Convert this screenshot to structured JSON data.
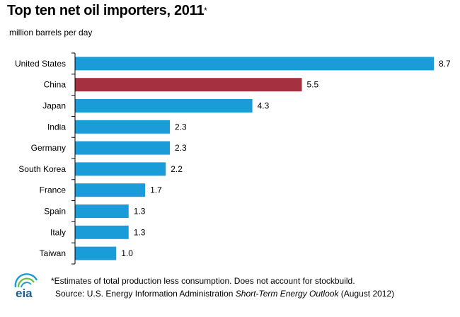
{
  "title": "Top ten net oil importers, 2011",
  "title_marker": "*",
  "subtitle": "million barrels per day",
  "footnote": {
    "note": "*Estimates of total production less consumption. Does not account for stockbuild.",
    "source_prefix": "Source: U.S. Energy Information Administration ",
    "source_title": "Short-Term Energy Outlook",
    "source_suffix": " (August 2012)"
  },
  "logo_text": "eia",
  "colors": {
    "default_bar": "#1a9cd9",
    "highlight_bar": "#a5303f",
    "axis": "#000000"
  },
  "chart_data": {
    "type": "bar",
    "orientation": "horizontal",
    "title": "Top ten net oil importers, 2011",
    "xlabel": "million barrels per day",
    "ylabel": "",
    "categories": [
      "United States",
      "China",
      "Japan",
      "India",
      "Germany",
      "South Korea",
      "France",
      "Spain",
      "Italy",
      "Taiwan"
    ],
    "values": [
      8.7,
      5.5,
      4.3,
      2.3,
      2.3,
      2.2,
      1.7,
      1.3,
      1.3,
      1.0
    ],
    "value_labels": [
      "8.7",
      "5.5",
      "4.3",
      "2.3",
      "2.3",
      "2.2",
      "1.7",
      "1.3",
      "1.3",
      "1.0"
    ],
    "highlight_category": "China",
    "xlim": [
      0,
      8.7
    ],
    "grid": false,
    "legend": "none"
  }
}
